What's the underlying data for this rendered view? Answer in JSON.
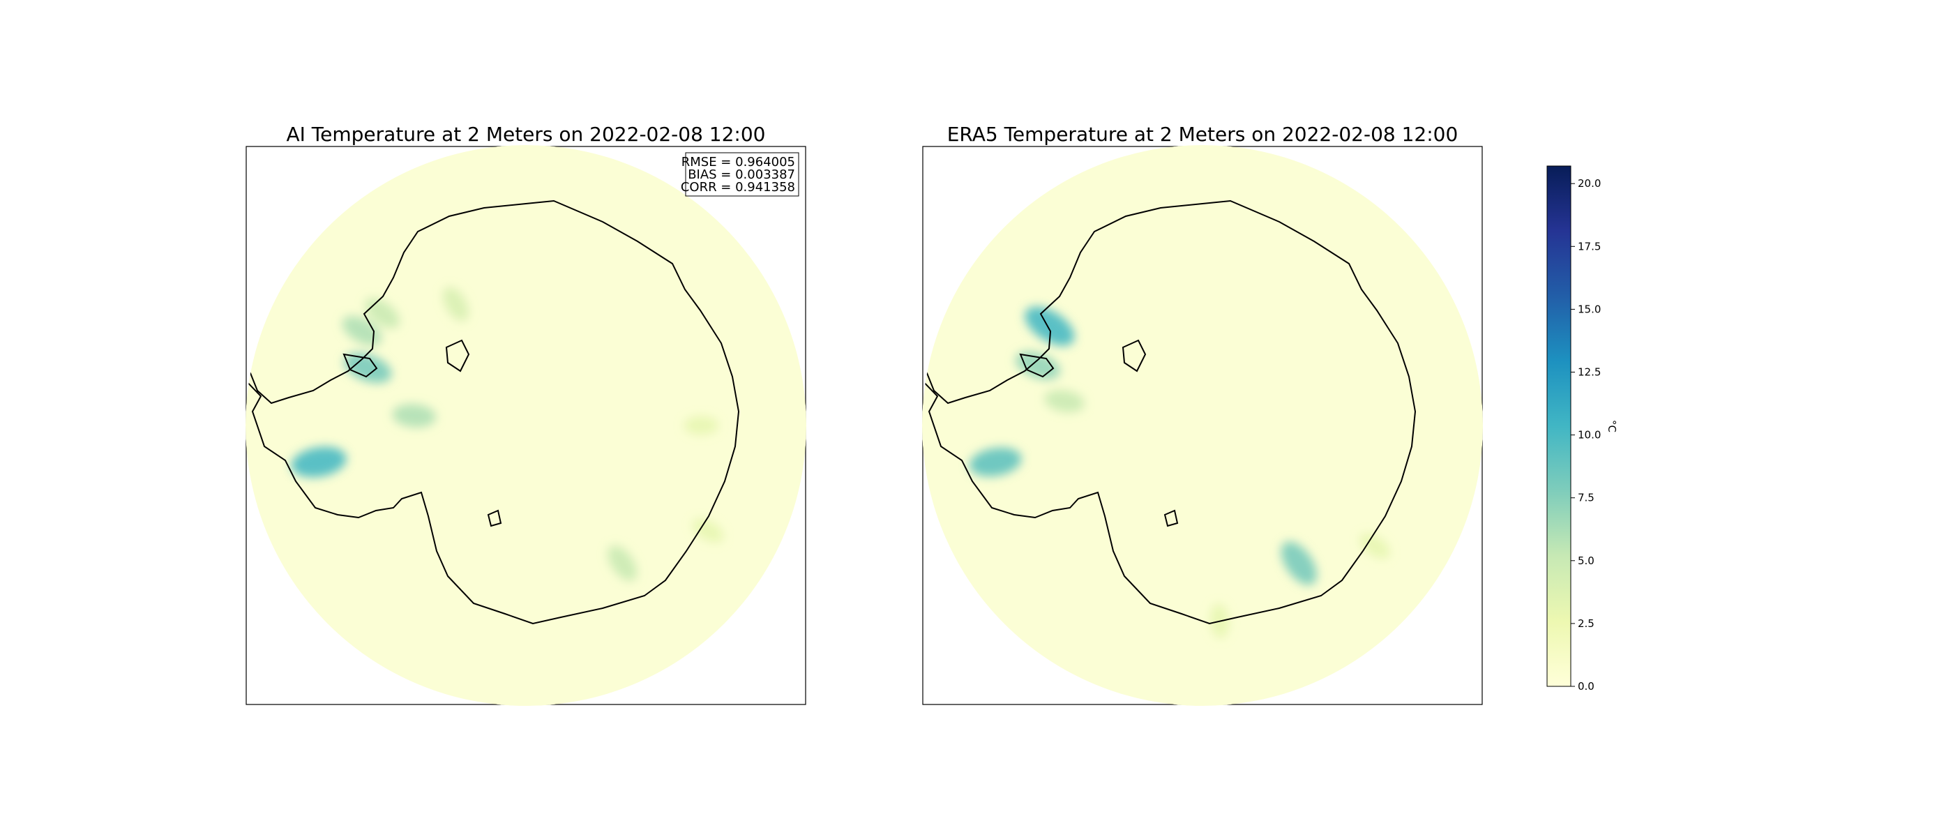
{
  "chart_data": [
    {
      "type": "heatmap",
      "title": "AI Temperature at 2 Meters on 2022-02-08 12:00",
      "stats": {
        "rmse": "RMSE = 0.964005",
        "bias": "BIAS = 0.003387",
        "corr": "CORR = 0.941358"
      },
      "hotspots": [
        {
          "lon": -100,
          "lat": -60,
          "value": 10
        },
        {
          "lon": -70,
          "lat": -66,
          "value": 8
        },
        {
          "lon": -60,
          "lat": -63,
          "value": 6
        },
        {
          "lon": -52,
          "lat": -64,
          "value": 5
        },
        {
          "lon": -30,
          "lat": -70,
          "value": 4
        },
        {
          "lon": -85,
          "lat": -74,
          "value": 6
        },
        {
          "lon": 145,
          "lat": -66,
          "value": 5
        },
        {
          "lon": 90,
          "lat": -65,
          "value": 3
        },
        {
          "lon": 120,
          "lat": -60,
          "value": 3
        }
      ]
    },
    {
      "type": "heatmap",
      "title": "ERA5 Temperature at 2 Meters on 2022-02-08 12:00",
      "hotspots": [
        {
          "lon": -100,
          "lat": -60,
          "value": 9
        },
        {
          "lon": -57,
          "lat": -64,
          "value": 10
        },
        {
          "lon": -70,
          "lat": -65,
          "value": 7
        },
        {
          "lon": -80,
          "lat": -70,
          "value": 5
        },
        {
          "lon": 145,
          "lat": -66,
          "value": 8
        },
        {
          "lon": 125,
          "lat": -60,
          "value": 3
        },
        {
          "lon": 175,
          "lat": -62,
          "value": 3
        }
      ]
    }
  ],
  "colorbar": {
    "label": "°C",
    "min": 0,
    "max": 20.7,
    "ticks": [
      "0.0",
      "2.5",
      "5.0",
      "7.5",
      "10.0",
      "12.5",
      "15.0",
      "17.5",
      "20.0"
    ],
    "tick_values": [
      0,
      2.5,
      5,
      7.5,
      10,
      12.5,
      15,
      17.5,
      20
    ],
    "colormap": "YlGnBu",
    "colors": [
      "#ffffd9",
      "#edf8b1",
      "#c7e9b4",
      "#7fcdbb",
      "#41b6c4",
      "#1d91c0",
      "#225ea8",
      "#253494",
      "#081d58"
    ]
  }
}
